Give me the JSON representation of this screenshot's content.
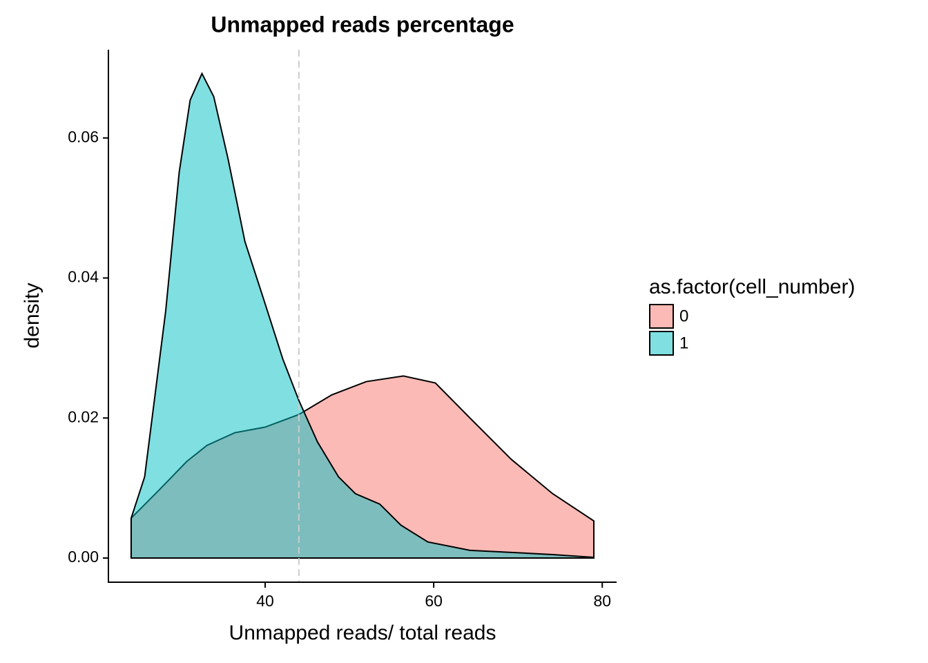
{
  "chart_data": {
    "type": "density",
    "title": "Unmapped reads percentage",
    "x_label": "Unmapped reads/ total reads",
    "y_label": "density",
    "legend_title": "as.factor(cell_number)",
    "xlim": [
      21.4,
      81.7
    ],
    "ylim": [
      -0.00345,
      0.0726
    ],
    "xticks": [
      40,
      60,
      80
    ],
    "yticks": [
      {
        "value": 0,
        "label": "0.00"
      },
      {
        "value": 0.02,
        "label": "0.02"
      },
      {
        "value": 0.04,
        "label": "0.04"
      },
      {
        "value": 0.06,
        "label": "0.06"
      }
    ],
    "alpha": 0.5,
    "vline": {
      "value": 44,
      "color": "#cccccc"
    },
    "series": [
      {
        "name": "0",
        "color": "#F8766D",
        "x": [
          24.1,
          27.4,
          30.7,
          33.1,
          36.4,
          40,
          44,
          47.9,
          52,
          56.4,
          60.2,
          64.3,
          69.2,
          74.1,
          79
        ],
        "values": [
          0.0057,
          0.0097,
          0.0138,
          0.0161,
          0.0179,
          0.0187,
          0.0205,
          0.0233,
          0.0252,
          0.026,
          0.025,
          0.02,
          0.0141,
          0.0092,
          0.0053
        ]
      },
      {
        "name": "1",
        "color": "#00BFC4",
        "x": [
          24.1,
          25.7,
          28.2,
          29.8,
          31.1,
          32.5,
          33.9,
          35.6,
          37.6,
          40,
          42.1,
          44,
          46.2,
          48.7,
          50.7,
          53.6,
          56.1,
          59.3,
          64.3,
          69.2,
          74.1,
          79
        ],
        "values": [
          0.0057,
          0.0116,
          0.0353,
          0.0551,
          0.0654,
          0.0692,
          0.0659,
          0.057,
          0.0452,
          0.0363,
          0.0284,
          0.0225,
          0.0166,
          0.0116,
          0.0092,
          0.0077,
          0.0047,
          0.0023,
          0.0011,
          0.0008,
          0.0005,
          0.0001
        ]
      }
    ]
  }
}
